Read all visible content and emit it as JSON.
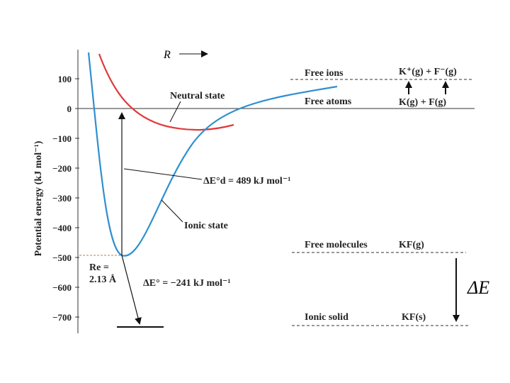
{
  "chart_data": {
    "type": "line",
    "title": "",
    "ylabel": "Potential energy (kJ mol⁻¹)",
    "xlabel": "R",
    "ylim": [
      -720,
      180
    ],
    "yticks": [
      100,
      0,
      -100,
      -200,
      -300,
      -400,
      -500,
      -600,
      -700
    ],
    "series": [
      {
        "name": "Neutral state",
        "color": "#e03a3a"
      },
      {
        "name": "Ionic state",
        "color": "#2e8fd1"
      }
    ]
  },
  "labels": {
    "r_axis": "R",
    "neutral_state": "Neutral state",
    "ionic_state": "Ionic state",
    "free_ions": "Free ions",
    "free_atoms": "Free atoms",
    "free_molecules": "Free molecules",
    "ionic_solid": "Ionic solid",
    "ions_formula": "K⁺(g) + F⁻(g)",
    "atoms_formula": "K(g) + F(g)",
    "molecule_formula": "KF(g)",
    "solid_formula": "KF(s)",
    "delta_ed": "ΔE°d = 489 kJ mol⁻¹",
    "delta_e": "ΔE° = −241 kJ mol⁻¹",
    "re_line1": "Re =",
    "re_line2": "2.13 Å",
    "big_delta_e": "ΔE"
  }
}
